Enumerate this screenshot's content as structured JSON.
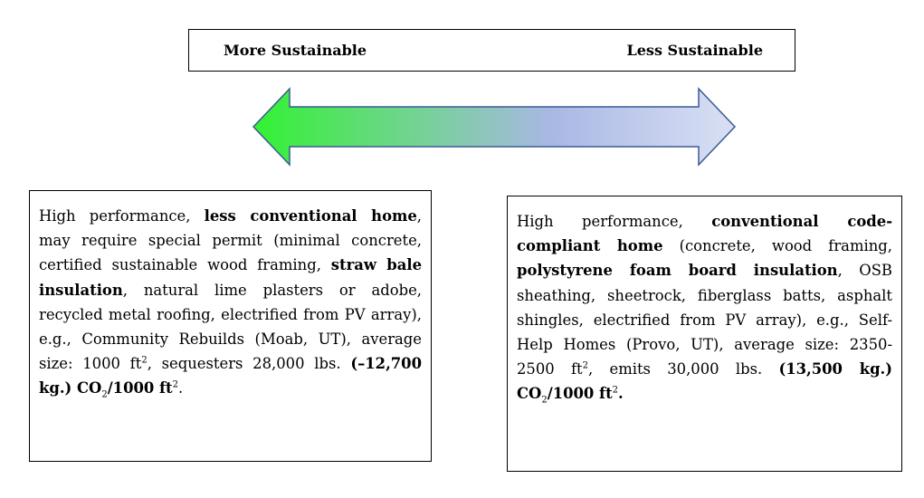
{
  "scale": {
    "more_label": "More Sustainable",
    "less_label": "Less Sustainable",
    "arrow_colors": [
      "#33f233",
      "#a9b8e4",
      "#d9e0f4"
    ],
    "arrow_stroke": "#3a5a94"
  },
  "left_box": {
    "t1": "High performance, ",
    "b1": "less conventional home",
    "t2": ", may require special permit (minimal concrete, certified sustainable wood framing, ",
    "b2": "straw bale insulation",
    "t3": ", natural lime plasters or adobe, recycled metal roofing, electrified from PV array), e.g., Community Rebuilds (Moab, UT), average size: 1000 ft",
    "sup1": "2",
    "t4": ", sequesters 28,000 lbs. ",
    "b3": "(–12,700 kg.) CO",
    "sub1": "2",
    "b4": "/1000 ft",
    "sup2": "2",
    "t5": "."
  },
  "right_box": {
    "t1": "High performance, ",
    "b1": "conventional code-compliant home",
    "t2": " (concrete, wood framing, ",
    "b2": "polystyrene foam board insulation",
    "t3": ", OSB sheathing, sheetrock, fiberglass batts, asphalt shingles, electrified from PV array), e.g., Self-Help Homes (Provo, UT), average size: 2350-2500 ft",
    "sup1": "2",
    "t4": ", emits 30,000 lbs. ",
    "b3": "(13,500 kg.) CO",
    "sub1": "2",
    "b4": "/1000 ft",
    "sup2": "2",
    "b5": "."
  }
}
